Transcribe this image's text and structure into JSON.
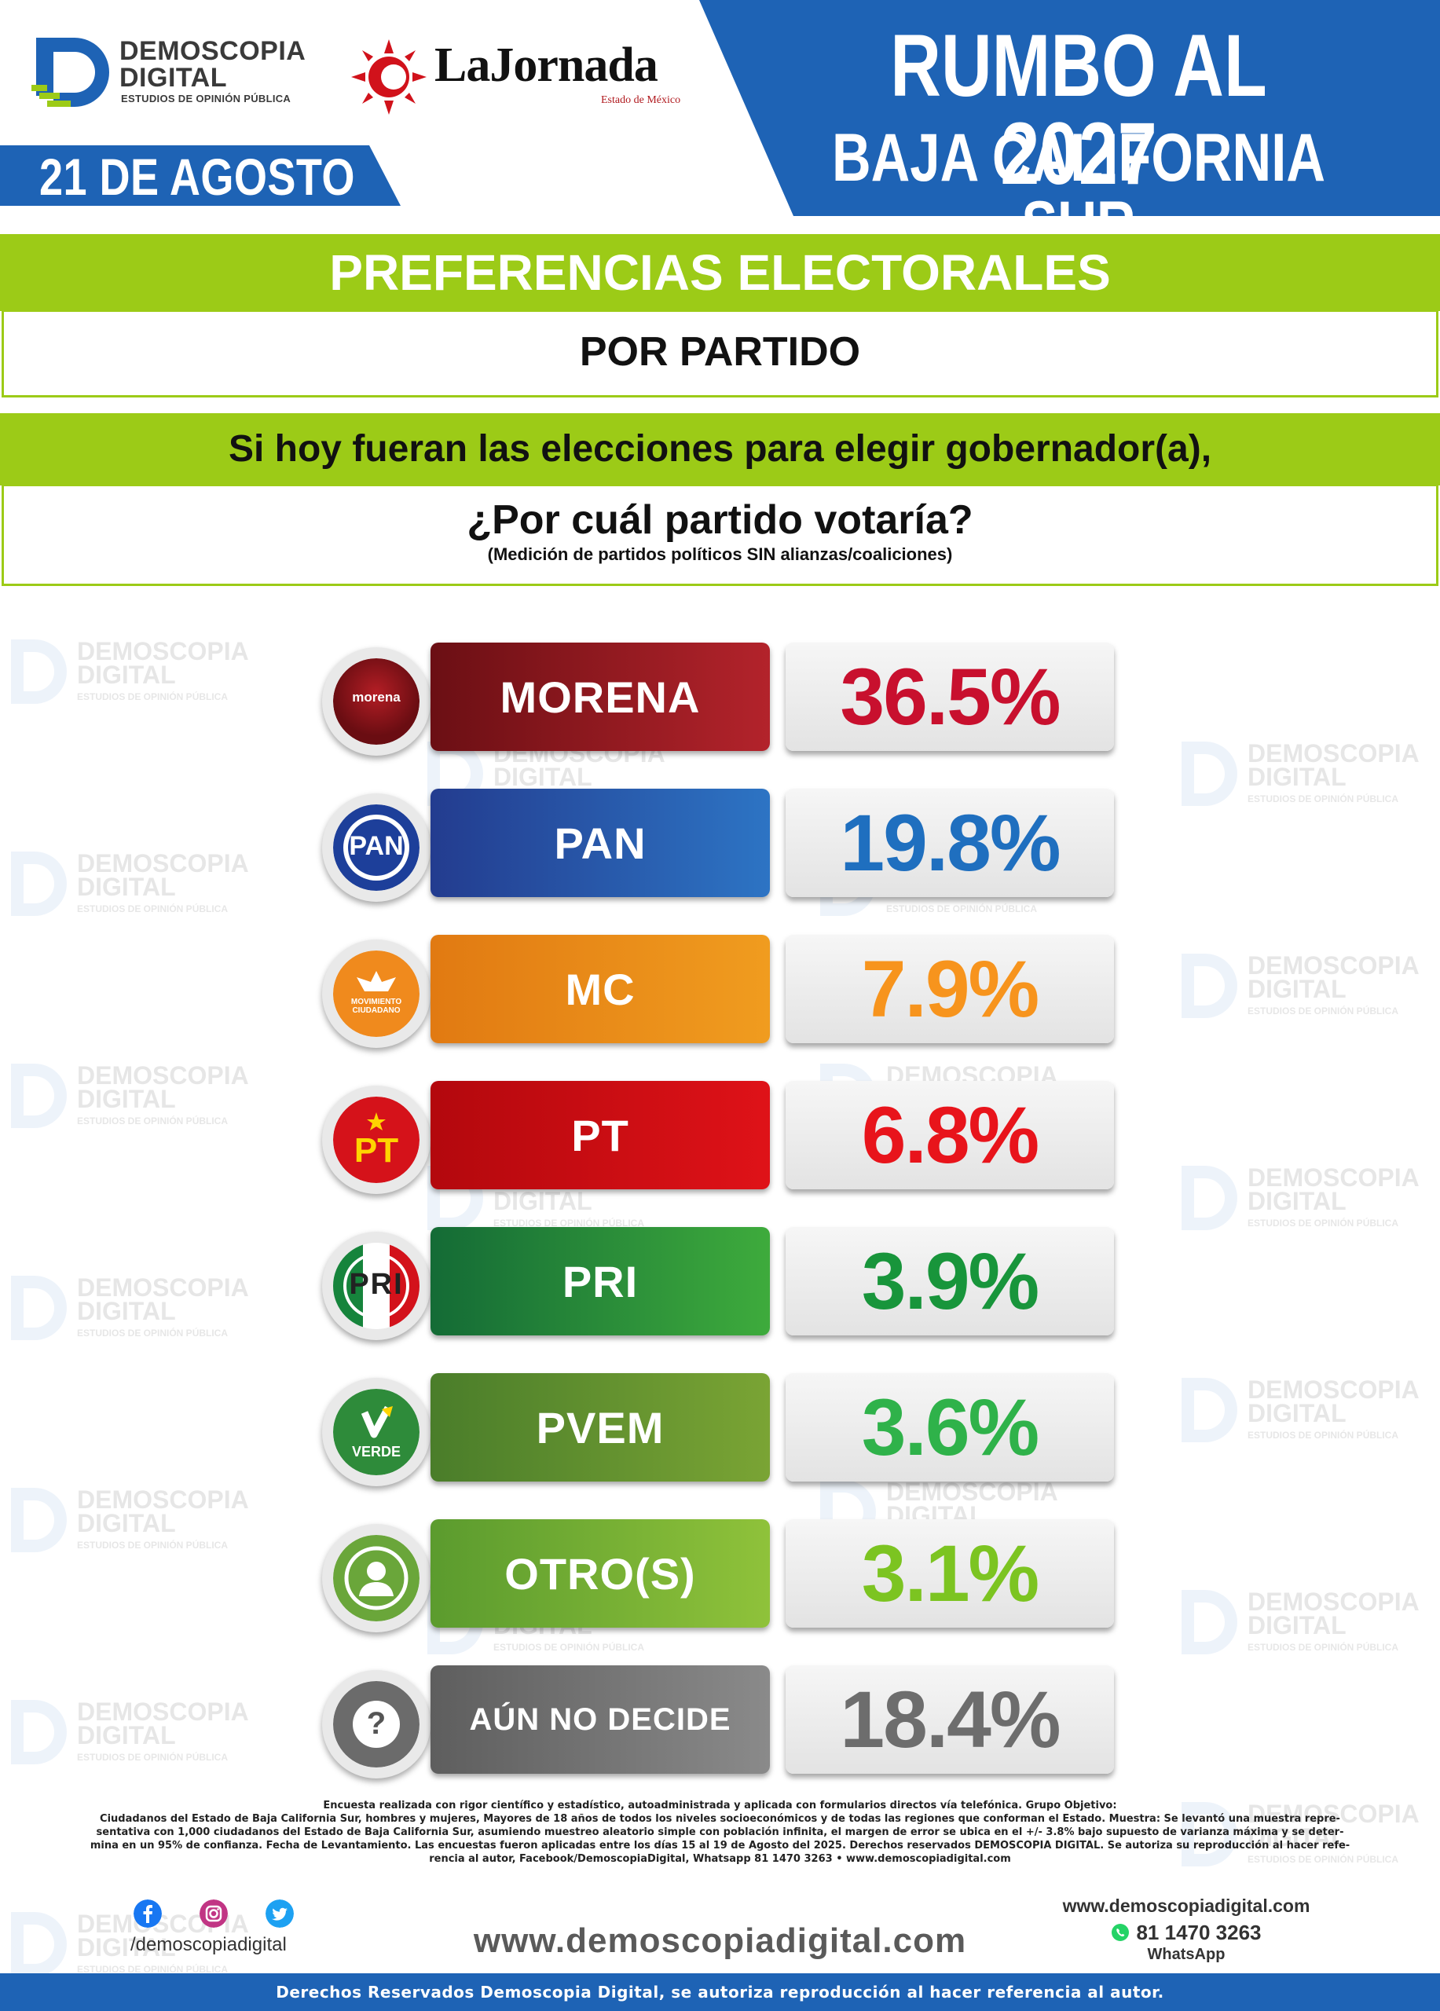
{
  "header": {
    "brand_name": "DEMOSCOPIA DIGITAL",
    "brand_line1": "DEMOSCOPIA",
    "brand_line2": "DIGITAL",
    "brand_sub": "ESTUDIOS DE OPINIÓN PÚBLICA",
    "partner_name": "LaJornada",
    "partner_sub": "Estado de México",
    "date": "21 DE AGOSTO",
    "title_line1": "RUMBO AL 2027",
    "title_line2": "BAJA CALIFORNIA SUR"
  },
  "section": {
    "title": "PREFERENCIAS ELECTORALES",
    "subtitle": "POR PARTIDO",
    "question_line1": "Si hoy fueran las elecciones para elegir gobernador(a),",
    "question_line2": "¿Por cuál partido votaría?",
    "question_note": "(Medición de partidos políticos SIN alianzas/coaliciones)"
  },
  "chart_data": {
    "type": "table",
    "unit": "%",
    "rows": [
      {
        "label": "MORENA",
        "value": 36.5,
        "display": "36.5%",
        "color": "#c8102e",
        "label_bg": [
          "#6b0f14",
          "#b3232b"
        ],
        "icon": "morena-logo-icon",
        "icon_text": "morena"
      },
      {
        "label": "PAN",
        "value": 19.8,
        "display": "19.8%",
        "color": "#1f6fbf",
        "label_bg": [
          "#233c8f",
          "#2d74c4"
        ],
        "icon": "pan-logo-icon",
        "icon_text": "PAN"
      },
      {
        "label": "MC",
        "value": 7.9,
        "display": "7.9%",
        "color": "#f7941d",
        "label_bg": [
          "#e17a12",
          "#f09c1f"
        ],
        "icon": "mc-logo-icon",
        "icon_text": "MOVIMIENTO CIUDADANO"
      },
      {
        "label": "PT",
        "value": 6.8,
        "display": "6.8%",
        "color": "#e8141b",
        "label_bg": [
          "#b3080d",
          "#df1218"
        ],
        "icon": "pt-logo-icon",
        "icon_text": "PT"
      },
      {
        "label": "PRI",
        "value": 3.9,
        "display": "3.9%",
        "color": "#18953b",
        "label_bg": [
          "#146b36",
          "#3eab3c"
        ],
        "icon": "pri-logo-icon",
        "icon_text": "PRI"
      },
      {
        "label": "PVEM",
        "value": 3.6,
        "display": "3.6%",
        "color": "#2fb24a",
        "label_bg": [
          "#4a7d2a",
          "#7aa434"
        ],
        "icon": "pvem-logo-icon",
        "icon_text": "VERDE"
      },
      {
        "label": "OTRO(S)",
        "value": 3.1,
        "display": "3.1%",
        "color": "#7cc421",
        "label_bg": [
          "#5b9b2e",
          "#8fc23a"
        ],
        "icon": "person-icon",
        "icon_text": ""
      },
      {
        "label": "AÚN NO DECIDE",
        "value": 18.4,
        "display": "18.4%",
        "color": "#6d6d6d",
        "label_bg": [
          "#5e5e5e",
          "#8a8a8a"
        ],
        "icon": "question-mark-icon",
        "icon_text": "?"
      }
    ]
  },
  "footnote": {
    "line1": "Encuesta realizada con rigor científico y estadístico, autoadministrada y aplicada con formularios directos vía telefónica. Grupo Objetivo:",
    "line2": "Ciudadanos del Estado de Baja California Sur, hombres y mujeres, Mayores de 18 años de todos los niveles socioeconómicos y de todas las regiones que conforman el Estado. Muestra: Se levantó una muestra repre-",
    "line3": "sentativa con 1,000 ciudadanos del Estado de Baja California Sur, asumiendo muestreo aleatorio simple con población infinita, el margen de error se ubica en el +/- 3.8% bajo supuesto de varianza máxima y se deter-",
    "line4": "mina en un 95% de confianza. Fecha de Levantamiento. Las encuestas fueron aplicadas entre los días 15 al 19 de Agosto del 2025. Derechos reservados DEMOSCOPIA DIGITAL. Se autoriza su reproducción al hacer refe-",
    "line5": "rencia al autor, Facebook/DemoscopiaDigital, Whatsapp 81 1470 3263 • www.demoscopiadigital.com"
  },
  "footer": {
    "social_handle": "/demoscopiadigital",
    "social_icons": [
      "facebook-icon",
      "instagram-icon",
      "twitter-icon"
    ],
    "website": "www.demoscopiadigital.com",
    "contact_web": "www.demoscopiadigital.com",
    "phone": "81 1470 3263",
    "whatsapp_label": "WhatsApp",
    "rights": "Derechos Reservados Demoscopia Digital, se autoriza reproducción al hacer referencia al autor."
  },
  "colors": {
    "brand_blue": "#1e63b5",
    "accent_green": "#9ccb17"
  }
}
